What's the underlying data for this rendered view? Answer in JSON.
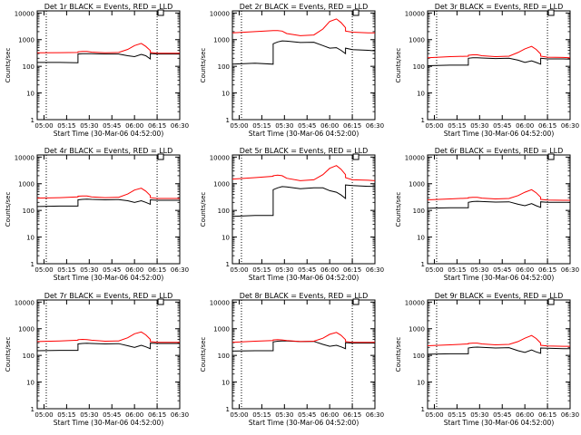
{
  "chart_data": [
    {
      "type": "line",
      "title": "Det 1r BLACK = Events, RED = LLD",
      "xlabel": "Start Time (30-Mar-06 04:52:00)",
      "ylabel": "Counts/sec",
      "xticks": [
        "05:00",
        "05:15",
        "05:30",
        "05:45",
        "06:00",
        "06:15",
        "06:30"
      ],
      "yticks": [
        "1",
        "10",
        "100",
        "1000",
        "10000"
      ],
      "ylim": [
        1,
        12000
      ],
      "yscale": "log",
      "x": [
        0,
        1,
        1.8,
        1.8,
        2,
        2.2,
        2.4,
        3,
        3.6,
        4,
        4.3,
        4.6,
        4.8,
        5,
        5,
        5.3,
        6,
        6.3
      ],
      "series": [
        {
          "name": "BLACK = Events",
          "color": "#000000",
          "values": [
            140,
            140,
            135,
            290,
            295,
            295,
            295,
            290,
            290,
            250,
            230,
            280,
            250,
            190,
            300,
            290,
            290,
            290
          ]
        },
        {
          "name": "RED = LLD",
          "color": "#ff0000",
          "values": [
            320,
            325,
            330,
            350,
            360,
            360,
            340,
            320,
            330,
            430,
            600,
            720,
            560,
            390,
            330,
            310,
            310,
            310
          ]
        }
      ]
    },
    {
      "type": "line",
      "title": "Det 2r BLACK = Events, RED = LLD",
      "xlabel": "Start Time (30-Mar-06 04:52:00)",
      "ylabel": "Counts/sec",
      "xticks": [
        "05:00",
        "05:15",
        "05:30",
        "05:45",
        "06:00",
        "06:15",
        "06:30"
      ],
      "yticks": [
        "1",
        "10",
        "100",
        "1000",
        "10000"
      ],
      "ylim": [
        1,
        12000
      ],
      "yscale": "log",
      "x": [
        0,
        1,
        1.8,
        1.8,
        2,
        2.2,
        2.4,
        3,
        3.6,
        4,
        4.3,
        4.6,
        4.8,
        5,
        5,
        5.3,
        6,
        6.3
      ],
      "series": [
        {
          "name": "BLACK = Events",
          "color": "#000000",
          "values": [
            120,
            130,
            120,
            700,
            820,
            900,
            880,
            780,
            800,
            600,
            480,
            500,
            400,
            300,
            480,
            420,
            400,
            380
          ]
        },
        {
          "name": "RED = LLD",
          "color": "#ff0000",
          "values": [
            1800,
            2000,
            2200,
            2200,
            2200,
            2100,
            1700,
            1400,
            1500,
            2500,
            4800,
            6000,
            4400,
            2800,
            2100,
            1900,
            1800,
            1800
          ]
        }
      ]
    },
    {
      "type": "line",
      "title": "Det 3r BLACK = Events, RED = LLD",
      "xlabel": "Start Time (30-Mar-06 04:52:00)",
      "ylabel": "Counts/sec",
      "xticks": [
        "05:00",
        "05:15",
        "05:30",
        "05:45",
        "06:00",
        "06:15",
        "06:30"
      ],
      "yticks": [
        "1",
        "10",
        "100",
        "1000",
        "10000"
      ],
      "ylim": [
        1,
        12000
      ],
      "yscale": "log",
      "x": [
        0,
        1,
        1.8,
        1.8,
        2,
        2.2,
        2.4,
        3,
        3.6,
        4,
        4.3,
        4.6,
        4.8,
        5,
        5,
        5.3,
        6,
        6.3
      ],
      "series": [
        {
          "name": "BLACK = Events",
          "color": "#000000",
          "values": [
            105,
            110,
            110,
            200,
            210,
            210,
            205,
            195,
            200,
            170,
            140,
            160,
            140,
            120,
            200,
            190,
            190,
            185
          ]
        },
        {
          "name": "RED = LLD",
          "color": "#ff0000",
          "values": [
            210,
            230,
            240,
            260,
            270,
            270,
            250,
            230,
            240,
            330,
            450,
            560,
            430,
            290,
            240,
            220,
            215,
            210
          ]
        }
      ]
    },
    {
      "type": "line",
      "title": "Det 4r BLACK = Events, RED = LLD",
      "xlabel": "Start Time (30-Mar-06 04:52:00)",
      "ylabel": "Counts/sec",
      "xticks": [
        "05:00",
        "05:15",
        "05:30",
        "05:45",
        "06:00",
        "06:15",
        "06:30"
      ],
      "yticks": [
        "1",
        "10",
        "100",
        "1000",
        "10000"
      ],
      "ylim": [
        1,
        12000
      ],
      "yscale": "log",
      "x": [
        0,
        1,
        1.8,
        1.8,
        2,
        2.2,
        2.4,
        3,
        3.6,
        4,
        4.3,
        4.6,
        4.8,
        5,
        5,
        5.3,
        6,
        6.3
      ],
      "series": [
        {
          "name": "BLACK = Events",
          "color": "#000000",
          "values": [
            140,
            145,
            145,
            250,
            260,
            265,
            260,
            250,
            255,
            230,
            200,
            230,
            200,
            170,
            250,
            240,
            240,
            240
          ]
        },
        {
          "name": "RED = LLD",
          "color": "#ff0000",
          "values": [
            290,
            300,
            320,
            340,
            350,
            350,
            320,
            300,
            310,
            410,
            580,
            680,
            530,
            360,
            300,
            280,
            280,
            280
          ]
        }
      ]
    },
    {
      "type": "line",
      "title": "Det 5r BLACK = Events, RED = LLD",
      "xlabel": "Start Time (30-Mar-06 04:52:00)",
      "ylabel": "Counts/sec",
      "xticks": [
        "05:00",
        "05:15",
        "05:30",
        "05:45",
        "06:00",
        "06:15",
        "06:30"
      ],
      "yticks": [
        "1",
        "10",
        "100",
        "1000",
        "10000"
      ],
      "ylim": [
        1,
        12000
      ],
      "yscale": "log",
      "x": [
        0,
        1,
        1.8,
        1.8,
        2,
        2.2,
        2.4,
        3,
        3.6,
        4,
        4.3,
        4.6,
        4.8,
        5,
        5,
        5.3,
        6,
        6.3
      ],
      "series": [
        {
          "name": "BLACK = Events",
          "color": "#000000",
          "values": [
            60,
            65,
            65,
            600,
            700,
            780,
            760,
            650,
            700,
            700,
            550,
            480,
            380,
            280,
            900,
            850,
            800,
            800
          ]
        },
        {
          "name": "RED = LLD",
          "color": "#ff0000",
          "values": [
            1500,
            1700,
            1900,
            2000,
            2100,
            2000,
            1600,
            1300,
            1400,
            2200,
            3800,
            4800,
            3500,
            2200,
            1700,
            1400,
            1350,
            1300
          ]
        }
      ]
    },
    {
      "type": "line",
      "title": "Det 6r BLACK = Events, RED = LLD",
      "xlabel": "Start Time (30-Mar-06 04:52:00)",
      "ylabel": "Counts/sec",
      "xticks": [
        "05:00",
        "05:15",
        "05:30",
        "05:45",
        "06:00",
        "06:15",
        "06:30"
      ],
      "yticks": [
        "1",
        "10",
        "100",
        "1000",
        "10000"
      ],
      "ylim": [
        1,
        12000
      ],
      "yscale": "log",
      "x": [
        0,
        1,
        1.8,
        1.8,
        2,
        2.2,
        2.4,
        3,
        3.6,
        4,
        4.3,
        4.6,
        4.8,
        5,
        5,
        5.3,
        6,
        6.3
      ],
      "series": [
        {
          "name": "BLACK = Events",
          "color": "#000000",
          "values": [
            120,
            125,
            125,
            200,
            215,
            220,
            215,
            205,
            210,
            170,
            150,
            180,
            150,
            130,
            210,
            200,
            200,
            200
          ]
        },
        {
          "name": "RED = LLD",
          "color": "#ff0000",
          "values": [
            250,
            270,
            290,
            300,
            310,
            310,
            290,
            270,
            280,
            360,
            480,
            600,
            460,
            310,
            260,
            245,
            240,
            240
          ]
        }
      ]
    },
    {
      "type": "line",
      "title": "Det 7r BLACK = Events, RED = LLD",
      "xlabel": "Start Time (30-Mar-06 04:52:00)",
      "ylabel": "Counts/sec",
      "xticks": [
        "05:00",
        "05:15",
        "05:30",
        "05:45",
        "06:00",
        "06:15",
        "06:30"
      ],
      "yticks": [
        "1",
        "10",
        "100",
        "1000",
        "10000"
      ],
      "ylim": [
        1,
        12000
      ],
      "yscale": "log",
      "x": [
        0,
        1,
        1.8,
        1.8,
        2,
        2.2,
        2.4,
        3,
        3.6,
        4,
        4.3,
        4.6,
        4.8,
        5,
        5,
        5.3,
        6,
        6.3
      ],
      "series": [
        {
          "name": "BLACK = Events",
          "color": "#000000",
          "values": [
            150,
            155,
            155,
            270,
            280,
            285,
            280,
            270,
            275,
            230,
            200,
            240,
            210,
            180,
            290,
            280,
            280,
            280
          ]
        },
        {
          "name": "RED = LLD",
          "color": "#ff0000",
          "values": [
            330,
            350,
            370,
            390,
            400,
            390,
            370,
            340,
            350,
            460,
            650,
            760,
            590,
            400,
            330,
            310,
            310,
            310
          ]
        }
      ]
    },
    {
      "type": "line",
      "title": "Det 8r BLACK = Events, RED = LLD",
      "xlabel": "Start Time (30-Mar-06 04:52:00)",
      "ylabel": "Counts/sec",
      "xticks": [
        "05:00",
        "05:15",
        "05:30",
        "05:45",
        "06:00",
        "06:15",
        "06:30"
      ],
      "yticks": [
        "1",
        "10",
        "100",
        "1000",
        "10000"
      ],
      "ylim": [
        1,
        12000
      ],
      "yscale": "log",
      "x": [
        0,
        1,
        1.8,
        1.8,
        2,
        2.2,
        2.4,
        3,
        3.6,
        4,
        4.3,
        4.6,
        4.8,
        5,
        5,
        5.3,
        6,
        6.3
      ],
      "series": [
        {
          "name": "BLACK = Events",
          "color": "#000000",
          "values": [
            145,
            150,
            150,
            320,
            340,
            350,
            345,
            330,
            335,
            260,
            220,
            240,
            210,
            180,
            300,
            290,
            290,
            290
          ]
        },
        {
          "name": "RED = LLD",
          "color": "#ff0000",
          "values": [
            310,
            340,
            360,
            380,
            390,
            380,
            360,
            330,
            340,
            440,
            620,
            730,
            570,
            390,
            330,
            310,
            310,
            310
          ]
        }
      ]
    },
    {
      "type": "line",
      "title": "Det 9r BLACK = Events, RED = LLD",
      "xlabel": "Start Time (30-Mar-06 04:52:00)",
      "ylabel": "Counts/sec",
      "xticks": [
        "05:00",
        "05:15",
        "05:30",
        "05:45",
        "06:00",
        "06:15",
        "06:30"
      ],
      "yticks": [
        "1",
        "10",
        "100",
        "1000",
        "10000"
      ],
      "ylim": [
        1,
        12000
      ],
      "yscale": "log",
      "x": [
        0,
        1,
        1.8,
        1.8,
        2,
        2.2,
        2.4,
        3,
        3.6,
        4,
        4.3,
        4.6,
        4.8,
        5,
        5,
        5.3,
        6,
        6.3
      ],
      "series": [
        {
          "name": "BLACK = Events",
          "color": "#000000",
          "values": [
            110,
            115,
            115,
            190,
            200,
            205,
            200,
            190,
            195,
            150,
            130,
            160,
            135,
            120,
            190,
            185,
            180,
            180
          ]
        },
        {
          "name": "RED = LLD",
          "color": "#ff0000",
          "values": [
            230,
            250,
            270,
            280,
            290,
            290,
            270,
            250,
            260,
            330,
            440,
            560,
            430,
            290,
            240,
            225,
            220,
            220
          ]
        }
      ]
    }
  ],
  "markers": {
    "vlines_x": [
      0.4,
      5.3
    ],
    "top_box_x": 5.3
  }
}
